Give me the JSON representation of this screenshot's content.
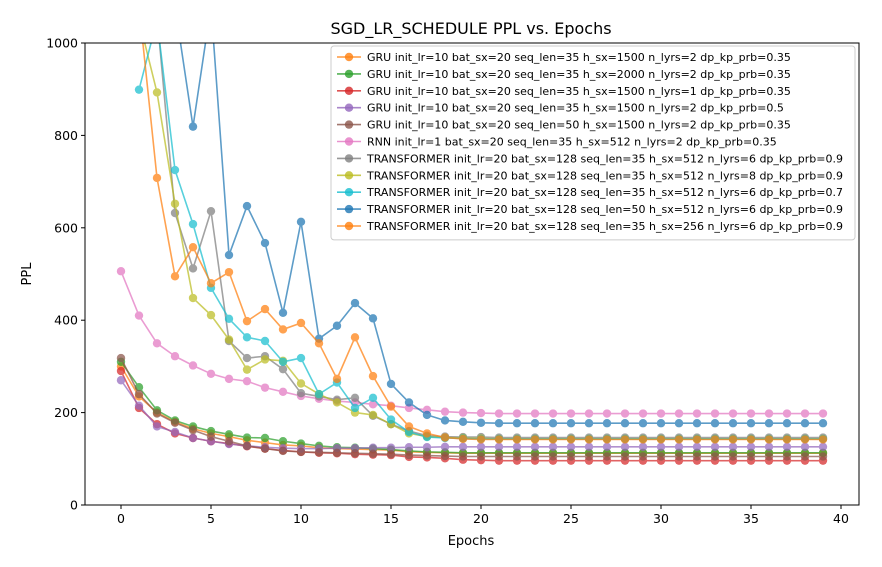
{
  "chart_data": {
    "type": "line",
    "title": "SGD_LR_SCHEDULE PPL vs. Epochs",
    "xlabel": "Epochs",
    "ylabel": "PPL",
    "xlim": [
      -2,
      41
    ],
    "ylim": [
      0,
      1000
    ],
    "xticks": [
      0,
      5,
      10,
      15,
      20,
      25,
      30,
      35,
      40
    ],
    "yticks": [
      0,
      200,
      400,
      600,
      800,
      1000
    ],
    "grid": false,
    "legend_position": "upper right",
    "series": [
      {
        "name": "GRU init_lr=10 bat_sx=20 seq_len=35 h_sx=1500 n_lyrs=2 dp_kp_prb=0.35",
        "color": "#ff7f0e",
        "values": [
          300,
          235,
          200,
          180,
          165,
          155,
          148,
          140,
          135,
          130,
          128,
          124,
          122,
          121,
          120,
          119,
          115,
          114,
          113,
          112,
          112,
          112,
          112,
          112,
          112,
          112,
          112,
          112,
          112,
          112,
          112,
          112,
          112,
          112,
          112,
          112,
          112,
          112,
          112,
          112
        ]
      },
      {
        "name": "GRU init_lr=10 bat_sx=20 seq_len=35 h_sx=2000 n_lyrs=2 dp_kp_prb=0.35",
        "color": "#2ca02c",
        "values": [
          310,
          255,
          205,
          183,
          170,
          160,
          153,
          146,
          145,
          138,
          133,
          128,
          125,
          124,
          122,
          120,
          117,
          115,
          114,
          113,
          113,
          113,
          113,
          113,
          113,
          113,
          113,
          113,
          113,
          113,
          113,
          113,
          113,
          113,
          113,
          113,
          113,
          113,
          113,
          113
        ]
      },
      {
        "name": "GRU init_lr=10 bat_sx=20 seq_len=35 h_sx=1500 n_lyrs=1 dp_kp_prb=0.35",
        "color": "#d62728",
        "values": [
          290,
          210,
          175,
          155,
          145,
          138,
          133,
          127,
          122,
          118,
          115,
          113,
          112,
          110,
          109,
          108,
          104,
          103,
          101,
          98,
          97,
          96,
          96,
          96,
          96,
          96,
          96,
          96,
          96,
          96,
          96,
          96,
          96,
          96,
          96,
          96,
          96,
          96,
          96,
          96
        ]
      },
      {
        "name": "GRU init_lr=10 bat_sx=20 seq_len=35 h_sx=1500 n_lyrs=2 dp_kp_prb=0.5",
        "color": "#9467bd",
        "values": [
          270,
          215,
          170,
          158,
          145,
          138,
          132,
          128,
          125,
          123,
          122,
          122,
          123,
          123,
          124,
          124,
          125,
          125,
          126,
          126,
          126,
          126,
          126,
          126,
          126,
          126,
          126,
          126,
          126,
          126,
          126,
          126,
          126,
          126,
          126,
          126,
          126,
          126,
          126,
          126
        ]
      },
      {
        "name": "GRU init_lr=10 bat_sx=20 seq_len=50 h_sx=1500 n_lyrs=2 dp_kp_prb=0.35",
        "color": "#8c564b",
        "values": [
          318,
          240,
          198,
          178,
          162,
          148,
          138,
          128,
          122,
          117,
          115,
          114,
          113,
          112,
          111,
          110,
          108,
          107,
          106,
          105,
          105,
          105,
          105,
          105,
          105,
          105,
          105,
          105,
          105,
          105,
          105,
          105,
          105,
          105,
          105,
          105,
          105,
          105,
          105,
          105
        ]
      },
      {
        "name": "RNN init_lr=1 bat_sx=20 seq_len=35 h_sx=512 n_lyrs=2 dp_kp_prb=0.35",
        "color": "#e377c2",
        "values": [
          506,
          410,
          350,
          322,
          302,
          284,
          273,
          268,
          254,
          245,
          236,
          230,
          225,
          222,
          218,
          215,
          210,
          206,
          202,
          200,
          199,
          198,
          198,
          198,
          198,
          198,
          198,
          198,
          198,
          198,
          198,
          198,
          198,
          198,
          198,
          198,
          198,
          198,
          198,
          198
        ]
      },
      {
        "name": "TRANSFORMER init_lr=20 bat_sx=128 seq_len=35 h_sx=512 n_lyrs=6 dp_kp_prb=0.9",
        "color": "#7f7f7f",
        "values": [
          null,
          1080,
          1060,
          632,
          512,
          636,
          355,
          318,
          322,
          294,
          242,
          235,
          228,
          232,
          193,
          175,
          160,
          150,
          148,
          147,
          147,
          146,
          146,
          146,
          146,
          146,
          146,
          146,
          146,
          146,
          146,
          146,
          146,
          146,
          146,
          146,
          146,
          146,
          146,
          146
        ]
      },
      {
        "name": "TRANSFORMER init_lr=20 bat_sx=128 seq_len=35 h_sx=512 n_lyrs=8 dp_kp_prb=0.9",
        "color": "#bcbd22",
        "values": [
          null,
          1050,
          893,
          652,
          448,
          411,
          358,
          293,
          315,
          312,
          263,
          240,
          222,
          200,
          195,
          175,
          155,
          148,
          146,
          145,
          144,
          143,
          143,
          143,
          143,
          143,
          143,
          143,
          143,
          143,
          143,
          143,
          143,
          143,
          143,
          143,
          143,
          143,
          143,
          143
        ]
      },
      {
        "name": "TRANSFORMER init_lr=20 bat_sx=128 seq_len=35 h_sx=512 n_lyrs=6 dp_kp_prb=0.7",
        "color": "#17becf",
        "values": [
          null,
          899,
          1050,
          725,
          608,
          470,
          403,
          363,
          355,
          310,
          318,
          240,
          265,
          210,
          232,
          185,
          158,
          147,
          145,
          144,
          143,
          143,
          143,
          143,
          143,
          143,
          143,
          143,
          143,
          143,
          143,
          143,
          143,
          143,
          143,
          143,
          143,
          143,
          143,
          143
        ]
      },
      {
        "name": "TRANSFORMER init_lr=20 bat_sx=128 seq_len=50 h_sx=512 n_lyrs=6 dp_kp_prb=0.9",
        "color": "#1f77b4",
        "values": [
          null,
          null,
          null,
          1080,
          819,
          1080,
          541,
          647,
          567,
          416,
          613,
          360,
          388,
          437,
          404,
          262,
          222,
          195,
          183,
          180,
          178,
          177,
          177,
          177,
          177,
          177,
          177,
          177,
          177,
          177,
          177,
          177,
          177,
          177,
          177,
          177,
          177,
          177,
          177,
          177
        ]
      },
      {
        "name": "TRANSFORMER init_lr=20 bat_sx=128 seq_len=35 h_sx=256 n_lyrs=6 dp_kp_prb=0.9",
        "color": "#ff7f0e",
        "values": [
          null,
          1080,
          708,
          495,
          558,
          480,
          504,
          398,
          424,
          380,
          394,
          350,
          273,
          363,
          279,
          213,
          170,
          155,
          146,
          143,
          142,
          142,
          142,
          142,
          142,
          142,
          142,
          142,
          142,
          142,
          142,
          142,
          142,
          142,
          142,
          142,
          142,
          142,
          142,
          142
        ]
      }
    ]
  }
}
